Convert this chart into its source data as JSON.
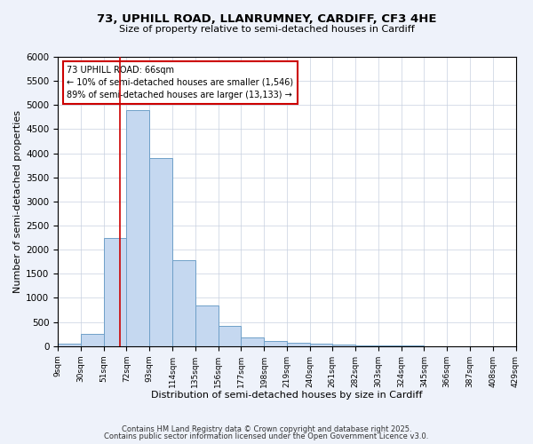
{
  "title1": "73, UPHILL ROAD, LLANRUMNEY, CARDIFF, CF3 4HE",
  "title2": "Size of property relative to semi-detached houses in Cardiff",
  "xlabel": "Distribution of semi-detached houses by size in Cardiff",
  "ylabel": "Number of semi-detached properties",
  "bin_edges": [
    9,
    30,
    51,
    72,
    93,
    114,
    135,
    156,
    177,
    198,
    219,
    240,
    261,
    282,
    303,
    324,
    345,
    366,
    387,
    408,
    429
  ],
  "bin_labels": [
    "9sqm",
    "30sqm",
    "51sqm",
    "72sqm",
    "93sqm",
    "114sqm",
    "135sqm",
    "156sqm",
    "177sqm",
    "198sqm",
    "219sqm",
    "240sqm",
    "261sqm",
    "282sqm",
    "303sqm",
    "324sqm",
    "345sqm",
    "366sqm",
    "387sqm",
    "408sqm",
    "429sqm"
  ],
  "counts": [
    50,
    260,
    2250,
    4900,
    3900,
    1780,
    840,
    415,
    175,
    110,
    70,
    50,
    30,
    18,
    10,
    7,
    4,
    3,
    2,
    1
  ],
  "bar_color": "#c5d8f0",
  "bar_edge_color": "#6fa0c8",
  "property_value": 66,
  "red_line_color": "#cc0000",
  "ann_line1": "73 UPHILL ROAD: 66sqm",
  "ann_line2": "← 10% of semi-detached houses are smaller (1,546)",
  "ann_line3": "89% of semi-detached houses are larger (13,133) →",
  "ylim": [
    0,
    6000
  ],
  "yticks": [
    0,
    500,
    1000,
    1500,
    2000,
    2500,
    3000,
    3500,
    4000,
    4500,
    5000,
    5500,
    6000
  ],
  "footer1": "Contains HM Land Registry data © Crown copyright and database right 2025.",
  "footer2": "Contains public sector information licensed under the Open Government Licence v3.0.",
  "bg_color": "#eef2fa",
  "plot_bg_color": "#ffffff",
  "grid_color": "#c8d0e0"
}
